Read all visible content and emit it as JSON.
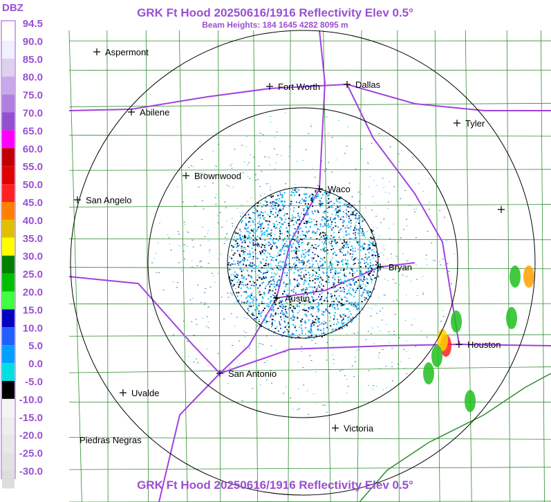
{
  "header": {
    "title": "GRK Ft Hood 20250616/1916 Reflectivity Elev 0.5°",
    "subtitle": "Beam Heights: 184 1645 4282 8095 m"
  },
  "legend": {
    "unit": "DBZ",
    "labels": [
      "94.5",
      "90.0",
      "85.0",
      "80.0",
      "75.0",
      "70.0",
      "65.0",
      "60.0",
      "55.0",
      "50.0",
      "45.0",
      "40.0",
      "35.0",
      "30.0",
      "25.0",
      "20.0",
      "15.0",
      "10.0",
      "5.0",
      "0.0",
      "-5.0",
      "-10.0",
      "-15.0",
      "-20.0",
      "-25.0",
      "-30.0"
    ]
  },
  "cities": [
    "Aspermont",
    "Fort Worth",
    "Dallas",
    "Abilene",
    "Tyler",
    "Brownwood",
    "Waco",
    "San Angelo",
    "Bryan",
    "Austin",
    "Houston",
    "San Antonio",
    "Uvalde",
    "Victoria",
    "Piedras Negras"
  ],
  "footer": {
    "title": "GRK Ft Hood 20250616/1916 Reflectivity Elev 0.5°"
  }
}
